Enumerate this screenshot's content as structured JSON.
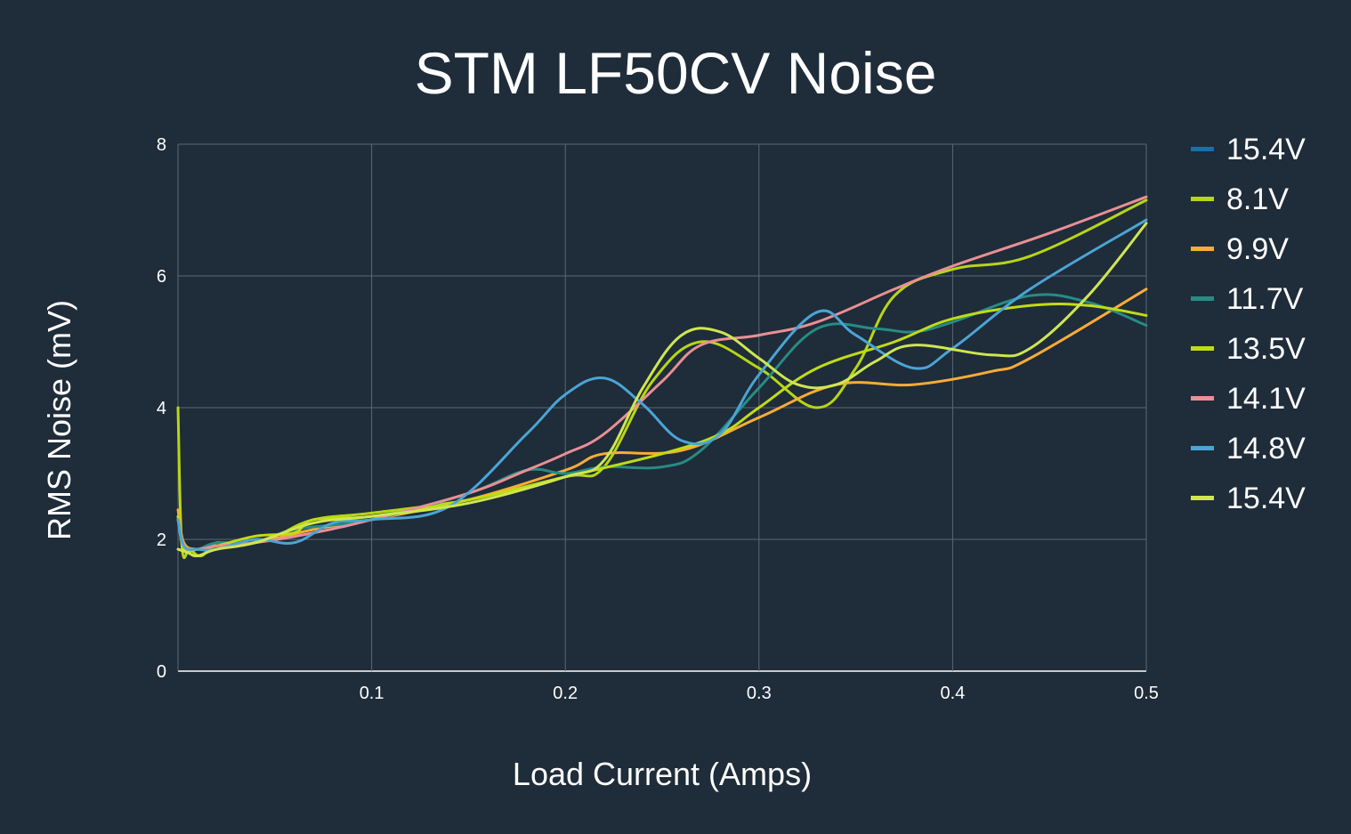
{
  "chart_data": {
    "type": "line",
    "title": "STM LF50CV Noise",
    "xlabel": "Load Current (Amps)",
    "ylabel": "RMS Noise (mV)",
    "xlim": [
      0,
      0.5
    ],
    "ylim": [
      0,
      8
    ],
    "x_ticks": [
      "0.1",
      "0.2",
      "0.3",
      "0.4",
      "0.5"
    ],
    "y_ticks": [
      "0",
      "2",
      "4",
      "6",
      "8"
    ],
    "grid": true,
    "legend_position": "right",
    "background": "#1f2c3a",
    "grid_color": "#5d6874",
    "series": [
      {
        "name": "15.4V",
        "color": "#1a6fa8",
        "points": []
      },
      {
        "name": "8.1V",
        "color": "#b8d614",
        "points": [
          [
            0.0,
            4.0
          ],
          [
            0.002,
            1.9
          ],
          [
            0.006,
            1.85
          ],
          [
            0.012,
            1.75
          ],
          [
            0.02,
            1.95
          ],
          [
            0.03,
            1.9
          ],
          [
            0.05,
            2.05
          ],
          [
            0.07,
            2.3
          ],
          [
            0.1,
            2.4
          ],
          [
            0.15,
            2.6
          ],
          [
            0.2,
            2.95
          ],
          [
            0.22,
            3.1
          ],
          [
            0.245,
            4.4
          ],
          [
            0.27,
            5.0
          ],
          [
            0.3,
            4.6
          ],
          [
            0.33,
            4.0
          ],
          [
            0.35,
            4.6
          ],
          [
            0.37,
            5.7
          ],
          [
            0.4,
            6.1
          ],
          [
            0.44,
            6.3
          ],
          [
            0.5,
            7.15
          ]
        ]
      },
      {
        "name": "9.9V",
        "color": "#f9ac36",
        "points": [
          [
            0.0,
            2.45
          ],
          [
            0.003,
            1.95
          ],
          [
            0.01,
            1.85
          ],
          [
            0.02,
            1.9
          ],
          [
            0.04,
            1.95
          ],
          [
            0.07,
            2.15
          ],
          [
            0.1,
            2.3
          ],
          [
            0.15,
            2.6
          ],
          [
            0.2,
            3.05
          ],
          [
            0.22,
            3.3
          ],
          [
            0.26,
            3.35
          ],
          [
            0.3,
            3.85
          ],
          [
            0.34,
            4.35
          ],
          [
            0.38,
            4.35
          ],
          [
            0.42,
            4.55
          ],
          [
            0.44,
            4.75
          ],
          [
            0.5,
            5.8
          ]
        ]
      },
      {
        "name": "11.7V",
        "color": "#268c84",
        "points": [
          [
            0.0,
            2.35
          ],
          [
            0.003,
            1.9
          ],
          [
            0.01,
            1.85
          ],
          [
            0.02,
            1.95
          ],
          [
            0.04,
            1.95
          ],
          [
            0.06,
            2.15
          ],
          [
            0.1,
            2.3
          ],
          [
            0.15,
            2.7
          ],
          [
            0.18,
            3.05
          ],
          [
            0.2,
            3.0
          ],
          [
            0.22,
            3.1
          ],
          [
            0.25,
            3.1
          ],
          [
            0.27,
            3.35
          ],
          [
            0.3,
            4.3
          ],
          [
            0.33,
            5.2
          ],
          [
            0.36,
            5.2
          ],
          [
            0.38,
            5.15
          ],
          [
            0.4,
            5.3
          ],
          [
            0.44,
            5.7
          ],
          [
            0.47,
            5.6
          ],
          [
            0.5,
            5.25
          ]
        ]
      },
      {
        "name": "13.5V",
        "color": "#c1dc14",
        "points": [
          [
            0.0,
            2.35
          ],
          [
            0.003,
            1.85
          ],
          [
            0.01,
            1.85
          ],
          [
            0.02,
            1.9
          ],
          [
            0.04,
            2.05
          ],
          [
            0.06,
            2.1
          ],
          [
            0.07,
            2.3
          ],
          [
            0.1,
            2.35
          ],
          [
            0.15,
            2.6
          ],
          [
            0.2,
            2.95
          ],
          [
            0.25,
            3.3
          ],
          [
            0.28,
            3.6
          ],
          [
            0.3,
            4.0
          ],
          [
            0.33,
            4.6
          ],
          [
            0.37,
            5.0
          ],
          [
            0.4,
            5.35
          ],
          [
            0.44,
            5.55
          ],
          [
            0.47,
            5.55
          ],
          [
            0.5,
            5.4
          ]
        ]
      },
      {
        "name": "14.1V",
        "color": "#ea8f95",
        "points": [
          [
            0.0,
            2.3
          ],
          [
            0.003,
            1.9
          ],
          [
            0.01,
            1.85
          ],
          [
            0.02,
            1.9
          ],
          [
            0.04,
            1.95
          ],
          [
            0.07,
            2.1
          ],
          [
            0.1,
            2.3
          ],
          [
            0.15,
            2.7
          ],
          [
            0.18,
            3.05
          ],
          [
            0.2,
            3.3
          ],
          [
            0.22,
            3.6
          ],
          [
            0.25,
            4.4
          ],
          [
            0.27,
            4.95
          ],
          [
            0.3,
            5.1
          ],
          [
            0.33,
            5.3
          ],
          [
            0.37,
            5.8
          ],
          [
            0.4,
            6.15
          ],
          [
            0.45,
            6.65
          ],
          [
            0.5,
            7.2
          ]
        ]
      },
      {
        "name": "14.8V",
        "color": "#4aa5d5",
        "points": [
          [
            0.0,
            2.3
          ],
          [
            0.003,
            1.9
          ],
          [
            0.01,
            1.85
          ],
          [
            0.02,
            1.85
          ],
          [
            0.04,
            2.0
          ],
          [
            0.06,
            1.95
          ],
          [
            0.08,
            2.25
          ],
          [
            0.1,
            2.3
          ],
          [
            0.14,
            2.5
          ],
          [
            0.18,
            3.6
          ],
          [
            0.2,
            4.2
          ],
          [
            0.22,
            4.45
          ],
          [
            0.24,
            4.05
          ],
          [
            0.26,
            3.5
          ],
          [
            0.28,
            3.6
          ],
          [
            0.3,
            4.5
          ],
          [
            0.33,
            5.45
          ],
          [
            0.35,
            5.1
          ],
          [
            0.38,
            4.6
          ],
          [
            0.4,
            4.9
          ],
          [
            0.44,
            5.8
          ],
          [
            0.5,
            6.85
          ]
        ]
      },
      {
        "name": "15.4V",
        "color": "#cfe651",
        "points": [
          [
            0.0,
            1.85
          ],
          [
            0.005,
            1.8
          ],
          [
            0.01,
            1.75
          ],
          [
            0.02,
            1.85
          ],
          [
            0.04,
            1.95
          ],
          [
            0.07,
            2.25
          ],
          [
            0.1,
            2.35
          ],
          [
            0.15,
            2.55
          ],
          [
            0.2,
            2.95
          ],
          [
            0.22,
            3.2
          ],
          [
            0.24,
            4.3
          ],
          [
            0.26,
            5.1
          ],
          [
            0.28,
            5.15
          ],
          [
            0.3,
            4.75
          ],
          [
            0.32,
            4.35
          ],
          [
            0.34,
            4.35
          ],
          [
            0.36,
            4.7
          ],
          [
            0.38,
            4.95
          ],
          [
            0.42,
            4.8
          ],
          [
            0.44,
            4.9
          ],
          [
            0.47,
            5.7
          ],
          [
            0.5,
            6.8
          ]
        ]
      }
    ]
  }
}
